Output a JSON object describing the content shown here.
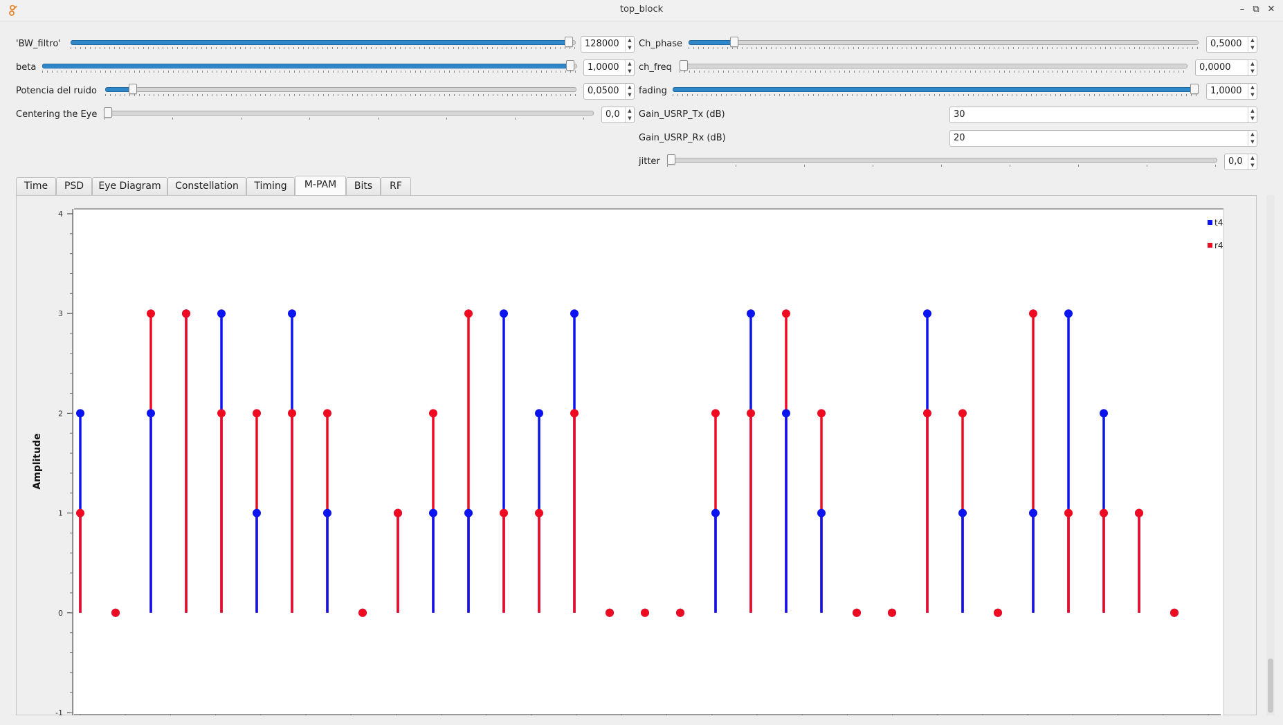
{
  "window": {
    "title": "top_block",
    "minimize": "–",
    "restore": "⧉",
    "close": "✕"
  },
  "controls": {
    "bw_filtro": {
      "label": "'BW_filtro'",
      "value": "128000",
      "level": 1.0
    },
    "beta": {
      "label": "beta",
      "value": "1,0000",
      "level": 1.0
    },
    "potencia_ruido": {
      "label": "Potencia del ruido",
      "value": "0,0500",
      "level": 0.05
    },
    "centering_eye": {
      "label": "Centering the Eye",
      "value": "0,0",
      "level": 0.0
    },
    "ch_phase": {
      "label": "Ch_phase",
      "value": "0,5000",
      "level": 0.088
    },
    "ch_freq": {
      "label": "ch_freq",
      "value": "0,0000",
      "level": 0.0
    },
    "fading": {
      "label": "fading",
      "value": "1,0000",
      "level": 1.0
    },
    "gain_tx": {
      "label": "Gain_USRP_Tx (dB)",
      "value": "30"
    },
    "gain_rx": {
      "label": "Gain_USRP_Rx (dB)",
      "value": "20"
    },
    "jitter": {
      "label": "jitter",
      "value": "0,0",
      "level": 0.0
    }
  },
  "tabs": [
    {
      "label": "Time"
    },
    {
      "label": "PSD"
    },
    {
      "label": "Eye Diagram"
    },
    {
      "label": "Constellation"
    },
    {
      "label": "Timing"
    },
    {
      "label": "M-PAM",
      "active": true
    },
    {
      "label": "Bits"
    },
    {
      "label": "RF"
    }
  ],
  "chart_data": {
    "type": "stem",
    "ylabel": "Amplitude",
    "ylim": [
      -1,
      4
    ],
    "yticks": [
      "4",
      "3",
      "2",
      "1",
      "0",
      "-1"
    ],
    "legend_placement": "top-right",
    "grid": false,
    "x": [
      0,
      1,
      2,
      3,
      4,
      5,
      6,
      7,
      8,
      9,
      10,
      11,
      12,
      13,
      14,
      15,
      16,
      17,
      18,
      19,
      20,
      21,
      22,
      23,
      24,
      25,
      26,
      27,
      28,
      29,
      30,
      31
    ],
    "series": [
      {
        "name": "t4",
        "color": "#0b14ee",
        "values": [
          2,
          0,
          2,
          3,
          3,
          1,
          3,
          1,
          0,
          1,
          1,
          1,
          3,
          2,
          3,
          0,
          0,
          0,
          1,
          3,
          2,
          1,
          0,
          0,
          3,
          1,
          0,
          1,
          3,
          2,
          1,
          0
        ]
      },
      {
        "name": "r4",
        "color": "#ee0b22",
        "values": [
          1,
          0,
          3,
          3,
          2,
          2,
          2,
          2,
          0,
          1,
          2,
          3,
          1,
          1,
          2,
          0,
          0,
          0,
          2,
          2,
          3,
          2,
          0,
          0,
          2,
          2,
          0,
          3,
          1,
          1,
          1,
          0
        ]
      }
    ]
  }
}
